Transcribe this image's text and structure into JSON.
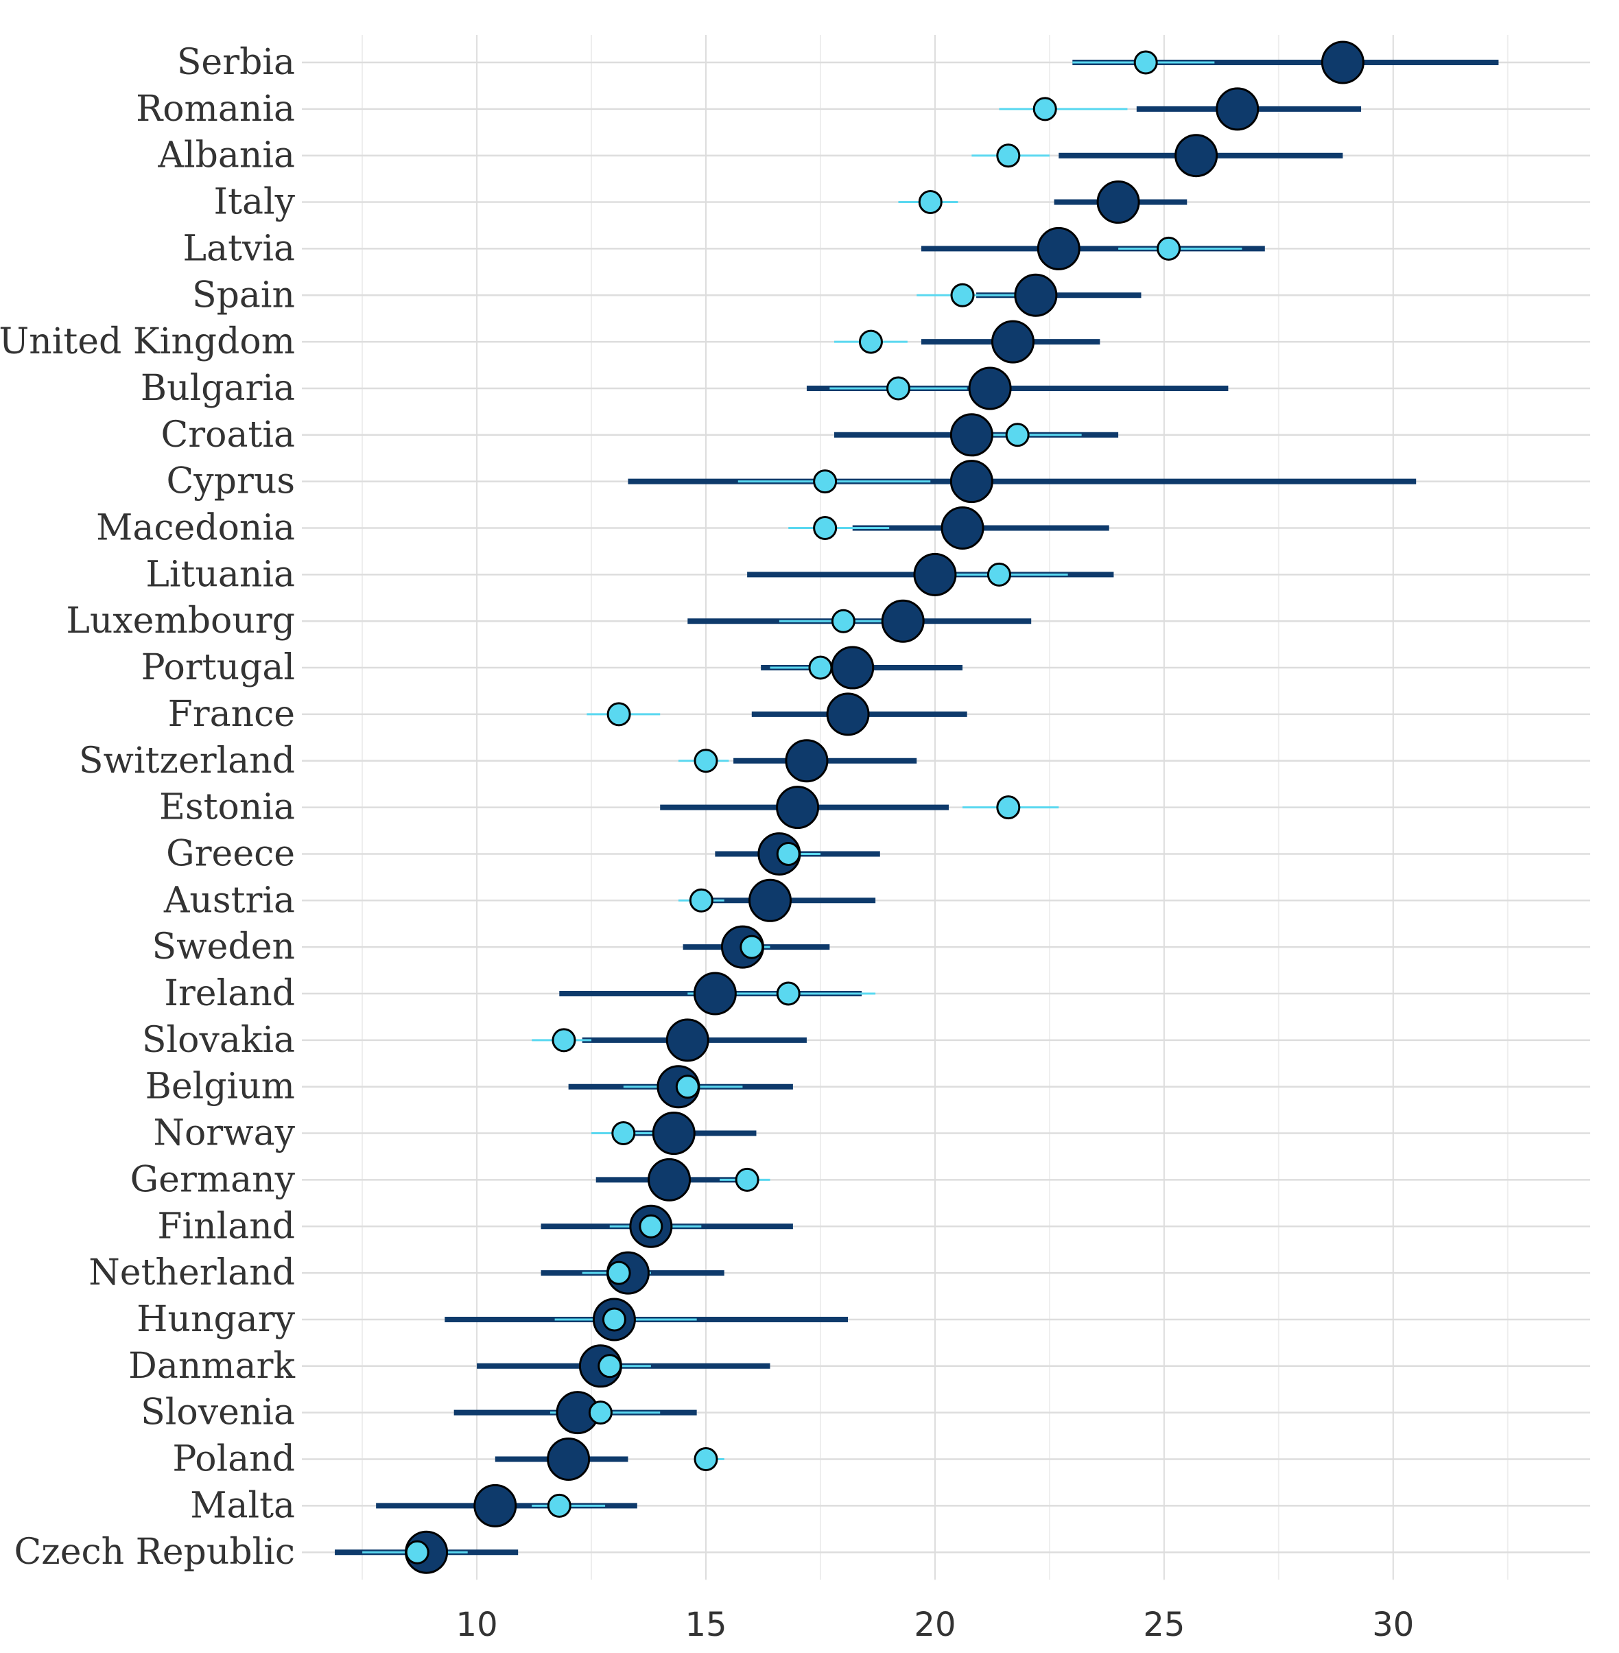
{
  "chart_data": {
    "type": "dot-interval",
    "title": "",
    "xlabel": "",
    "ylabel": "",
    "xlim": [
      6.6,
      34.3
    ],
    "xticks": [
      10,
      15,
      20,
      25,
      30
    ],
    "grid": true,
    "colors": {
      "primary": "#0e3a6b",
      "secondary": "#5ad8f0",
      "grid": "#dddddd",
      "outline": "#000000"
    },
    "series": [
      {
        "name": "primary",
        "color": "#0e3a6b",
        "points": [
          {
            "category": "Serbia",
            "value": 28.9,
            "low": 23.0,
            "high": 32.3
          },
          {
            "category": "Romania",
            "value": 26.6,
            "low": 24.4,
            "high": 29.3
          },
          {
            "category": "Albania",
            "value": 25.7,
            "low": 22.7,
            "high": 28.9
          },
          {
            "category": "Italy",
            "value": 24.0,
            "low": 22.6,
            "high": 25.5
          },
          {
            "category": "Latvia",
            "value": 22.7,
            "low": 19.7,
            "high": 27.2
          },
          {
            "category": "Spain",
            "value": 22.2,
            "low": 20.9,
            "high": 24.5
          },
          {
            "category": "United Kingdom",
            "value": 21.7,
            "low": 19.7,
            "high": 23.6
          },
          {
            "category": "Bulgaria",
            "value": 21.2,
            "low": 17.2,
            "high": 26.4
          },
          {
            "category": "Croatia",
            "value": 20.8,
            "low": 17.8,
            "high": 24.0
          },
          {
            "category": "Cyprus",
            "value": 20.8,
            "low": 13.3,
            "high": 30.5
          },
          {
            "category": "Macedonia",
            "value": 20.6,
            "low": 18.2,
            "high": 23.8
          },
          {
            "category": "Lituania",
            "value": 20.0,
            "low": 15.9,
            "high": 23.9
          },
          {
            "category": "Luxembourg",
            "value": 19.3,
            "low": 14.6,
            "high": 22.1
          },
          {
            "category": "Portugal",
            "value": 18.2,
            "low": 16.2,
            "high": 20.6
          },
          {
            "category": "France",
            "value": 18.1,
            "low": 16.0,
            "high": 20.7
          },
          {
            "category": "Switzerland",
            "value": 17.2,
            "low": 15.6,
            "high": 19.6
          },
          {
            "category": "Estonia",
            "value": 17.0,
            "low": 14.0,
            "high": 20.3
          },
          {
            "category": "Greece",
            "value": 16.6,
            "low": 15.2,
            "high": 18.8
          },
          {
            "category": "Austria",
            "value": 16.4,
            "low": 14.9,
            "high": 18.7
          },
          {
            "category": "Sweden",
            "value": 15.8,
            "low": 14.5,
            "high": 17.7
          },
          {
            "category": "Ireland",
            "value": 15.2,
            "low": 11.8,
            "high": 18.4
          },
          {
            "category": "Slovakia",
            "value": 14.6,
            "low": 12.3,
            "high": 17.2
          },
          {
            "category": "Belgium",
            "value": 14.4,
            "low": 12.0,
            "high": 16.9
          },
          {
            "category": "Norway",
            "value": 14.3,
            "low": 13.2,
            "high": 16.1
          },
          {
            "category": "Germany",
            "value": 14.2,
            "low": 12.6,
            "high": 15.9
          },
          {
            "category": "Finland",
            "value": 13.8,
            "low": 11.4,
            "high": 16.9
          },
          {
            "category": "Netherland",
            "value": 13.3,
            "low": 11.4,
            "high": 15.4
          },
          {
            "category": "Hungary",
            "value": 13.0,
            "low": 9.3,
            "high": 18.1
          },
          {
            "category": "Danmark",
            "value": 12.7,
            "low": 10.0,
            "high": 16.4
          },
          {
            "category": "Slovenia",
            "value": 12.2,
            "low": 9.5,
            "high": 14.8
          },
          {
            "category": "Poland",
            "value": 12.0,
            "low": 10.4,
            "high": 13.3
          },
          {
            "category": "Malta",
            "value": 10.4,
            "low": 7.8,
            "high": 13.5
          },
          {
            "category": "Czech Republic",
            "value": 8.9,
            "low": 6.9,
            "high": 10.9
          }
        ]
      },
      {
        "name": "secondary",
        "color": "#5ad8f0",
        "points": [
          {
            "category": "Serbia",
            "value": 24.6,
            "low": 23.0,
            "high": 26.1
          },
          {
            "category": "Romania",
            "value": 22.4,
            "low": 21.4,
            "high": 24.2
          },
          {
            "category": "Albania",
            "value": 21.6,
            "low": 20.8,
            "high": 22.5
          },
          {
            "category": "Italy",
            "value": 19.9,
            "low": 19.2,
            "high": 20.5
          },
          {
            "category": "Latvia",
            "value": 25.1,
            "low": 24.0,
            "high": 26.7
          },
          {
            "category": "Spain",
            "value": 20.6,
            "low": 19.6,
            "high": 22.0
          },
          {
            "category": "United Kingdom",
            "value": 18.6,
            "low": 17.8,
            "high": 19.4
          },
          {
            "category": "Bulgaria",
            "value": 19.2,
            "low": 17.7,
            "high": 20.7
          },
          {
            "category": "Croatia",
            "value": 21.8,
            "low": 20.9,
            "high": 23.2
          },
          {
            "category": "Cyprus",
            "value": 17.6,
            "low": 15.7,
            "high": 19.9
          },
          {
            "category": "Macedonia",
            "value": 17.6,
            "low": 16.8,
            "high": 19.0
          },
          {
            "category": "Lituania",
            "value": 21.4,
            "low": 20.2,
            "high": 22.9
          },
          {
            "category": "Luxembourg",
            "value": 18.0,
            "low": 16.6,
            "high": 19.2
          },
          {
            "category": "Portugal",
            "value": 17.5,
            "low": 16.4,
            "high": 18.2
          },
          {
            "category": "France",
            "value": 13.1,
            "low": 12.4,
            "high": 14.0
          },
          {
            "category": "Switzerland",
            "value": 15.0,
            "low": 14.4,
            "high": 15.5
          },
          {
            "category": "Estonia",
            "value": 21.6,
            "low": 20.6,
            "high": 22.7
          },
          {
            "category": "Greece",
            "value": 16.8,
            "low": 16.2,
            "high": 17.5
          },
          {
            "category": "Austria",
            "value": 14.9,
            "low": 14.4,
            "high": 15.4
          },
          {
            "category": "Sweden",
            "value": 16.0,
            "low": 15.7,
            "high": 16.4
          },
          {
            "category": "Ireland",
            "value": 16.8,
            "low": 14.6,
            "high": 18.7
          },
          {
            "category": "Slovakia",
            "value": 11.9,
            "low": 11.2,
            "high": 12.5
          },
          {
            "category": "Belgium",
            "value": 14.6,
            "low": 13.2,
            "high": 15.8
          },
          {
            "category": "Norway",
            "value": 13.2,
            "low": 12.5,
            "high": 13.9
          },
          {
            "category": "Germany",
            "value": 15.9,
            "low": 15.3,
            "high": 16.4
          },
          {
            "category": "Finland",
            "value": 13.8,
            "low": 12.9,
            "high": 14.9
          },
          {
            "category": "Netherland",
            "value": 13.1,
            "low": 12.3,
            "high": 13.8
          },
          {
            "category": "Hungary",
            "value": 13.0,
            "low": 11.7,
            "high": 14.8
          },
          {
            "category": "Danmark",
            "value": 12.9,
            "low": 12.3,
            "high": 13.8
          },
          {
            "category": "Slovenia",
            "value": 12.7,
            "low": 11.6,
            "high": 14.0
          },
          {
            "category": "Poland",
            "value": 15.0,
            "low": 14.8,
            "high": 15.4
          },
          {
            "category": "Malta",
            "value": 11.8,
            "low": 11.2,
            "high": 12.8
          },
          {
            "category": "Czech Republic",
            "value": 8.7,
            "low": 7.5,
            "high": 9.8
          }
        ]
      }
    ]
  }
}
